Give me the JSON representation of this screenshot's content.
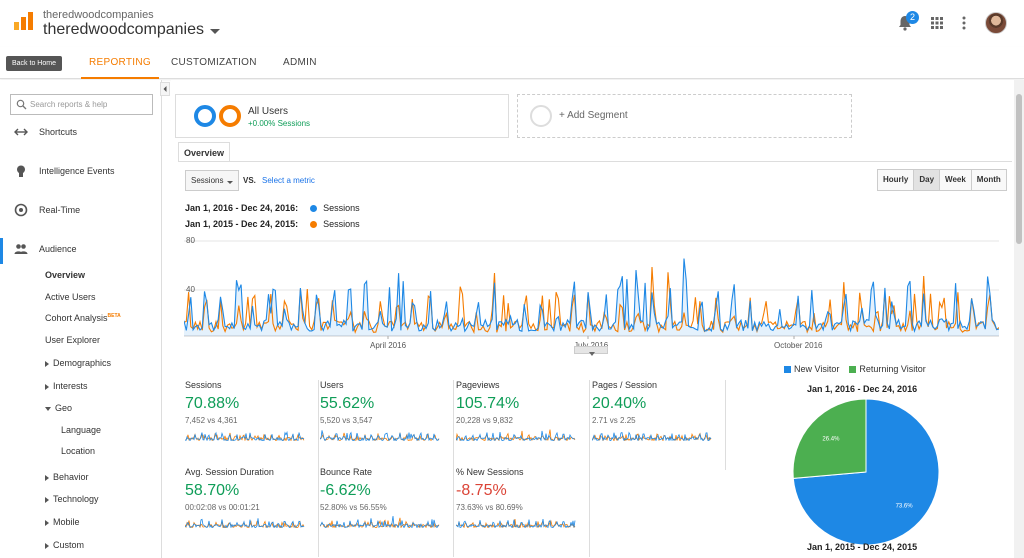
{
  "header": {
    "account_sub": "theredwoodcompanies",
    "account_main": "theredwoodcompanies",
    "notification_count": "2"
  },
  "nav": {
    "back_label": "Back to Home",
    "tabs": [
      {
        "label": "REPORTING",
        "active": true
      },
      {
        "label": "CUSTOMIZATION",
        "active": false
      },
      {
        "label": "ADMIN",
        "active": false
      }
    ]
  },
  "sidebar": {
    "search_placeholder": "Search reports & help",
    "items": [
      {
        "label": "Shortcuts",
        "icon": "shortcuts-icon"
      },
      {
        "label": "Intelligence Events",
        "icon": "lightbulb-icon"
      },
      {
        "label": "Real-Time",
        "icon": "clock-icon"
      },
      {
        "label": "Audience",
        "icon": "people-icon"
      }
    ],
    "subitems": {
      "overview": "Overview",
      "active_users": "Active Users",
      "cohort": "Cohort Analysis",
      "beta": "BETA",
      "user_explorer": "User Explorer",
      "demographics": "Demographics",
      "interests": "Interests",
      "geo": "Geo",
      "language": "Language",
      "location": "Location",
      "behavior": "Behavior",
      "technology": "Technology",
      "mobile": "Mobile",
      "custom": "Custom"
    }
  },
  "segments": {
    "all_users": "All Users",
    "all_users_sub": "+0.00% Sessions",
    "add_segment": "+ Add Segment"
  },
  "overview_tab": "Overview",
  "controls": {
    "metric": "Sessions",
    "vs": "VS.",
    "select_metric": "Select a metric",
    "time_buttons": [
      {
        "label": "Hourly",
        "active": false
      },
      {
        "label": "Day",
        "active": true
      },
      {
        "label": "Week",
        "active": false
      },
      {
        "label": "Month",
        "active": false
      }
    ]
  },
  "colors": {
    "series_2016": "#1e88e5",
    "series_2015": "#f57c00",
    "new_visitor": "#1e88e5",
    "returning_visitor": "#4caf50",
    "accent": "#f57c00"
  },
  "chart_data": [
    {
      "type": "line",
      "series": [
        {
          "name": "Sessions",
          "range": "Jan 1, 2016 - Dec 24, 2016:"
        },
        {
          "name": "Sessions",
          "range": "Jan 1, 2015 - Dec 24, 2015:"
        }
      ],
      "yticks": [
        "80",
        "40"
      ],
      "xticks": [
        "April 2016",
        "July 2016",
        "October 2016"
      ],
      "ylim": [
        0,
        80
      ]
    },
    {
      "type": "pie",
      "legend": [
        "New Visitor",
        "Returning Visitor"
      ],
      "title_top": "Jan 1, 2016 - Dec 24, 2016",
      "title_bottom": "Jan 1, 2015 - Dec 24, 2015",
      "values": [
        73.6,
        26.4
      ],
      "labels": [
        "73.6%",
        "26.4%"
      ]
    }
  ],
  "kpis": [
    {
      "label": "Sessions",
      "value": "70.88%",
      "sub": "7,452 vs 4,361",
      "tone": "green"
    },
    {
      "label": "Users",
      "value": "55.62%",
      "sub": "5,520 vs 3,547",
      "tone": "green"
    },
    {
      "label": "Pageviews",
      "value": "105.74%",
      "sub": "20,228 vs 9,832",
      "tone": "green"
    },
    {
      "label": "Pages / Session",
      "value": "20.40%",
      "sub": "2.71 vs 2.25",
      "tone": "green"
    },
    {
      "label": "Avg. Session Duration",
      "value": "58.70%",
      "sub": "00:02:08 vs 00:01:21",
      "tone": "green"
    },
    {
      "label": "Bounce Rate",
      "value": "-6.62%",
      "sub": "52.80% vs 56.55%",
      "tone": "green"
    },
    {
      "label": "% New Sessions",
      "value": "-8.75%",
      "sub": "73.63% vs 80.69%",
      "tone": "red"
    }
  ]
}
